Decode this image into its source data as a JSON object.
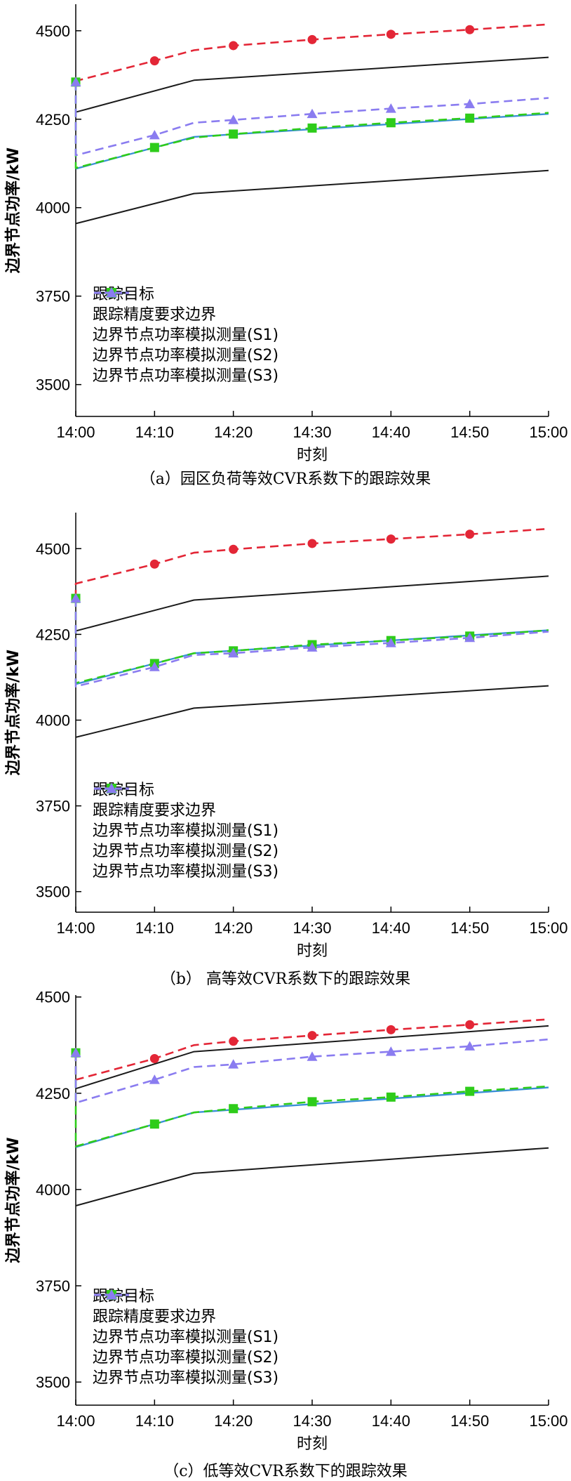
{
  "legend": {
    "target": "跟踪目标",
    "boundary": "跟踪精度要求边界",
    "s1": "边界节点功率模拟测量(S1)",
    "s2": "边界节点功率模拟测量(S2)",
    "s3": "边界节点功率模拟测量(S3)"
  },
  "colors": {
    "target": "#3a8fd6",
    "boundary": "#1a1a1a",
    "s1": "#e32636",
    "s2": "#2ecc1a",
    "s3": "#8a7cf0"
  },
  "chart_data": [
    {
      "type": "line",
      "caption": "（a）园区负荷等效CVR系数下的跟踪效果",
      "xlabel": "时刻",
      "ylabel": "边界节点功率/kW",
      "x_ticks": [
        "14:00",
        "14:10",
        "14:20",
        "14:30",
        "14:40",
        "14:50",
        "15:00"
      ],
      "xlim": [
        0,
        60
      ],
      "y_ticks": [
        3500,
        3750,
        4000,
        4250,
        4500
      ],
      "ylim": [
        3410,
        4575
      ],
      "series": [
        {
          "name": "跟踪目标",
          "key": "target",
          "x": [
            0,
            15,
            60
          ],
          "y": [
            4110,
            4200,
            4265
          ]
        },
        {
          "name": "跟踪精度要求边界",
          "key": "boundary",
          "x": [
            0,
            15,
            60
          ],
          "y": [
            4270,
            4360,
            4425
          ]
        },
        {
          "name": "跟踪精度要求边界",
          "key": "boundary",
          "x": [
            0,
            15,
            60
          ],
          "y": [
            3955,
            4040,
            4105
          ]
        },
        {
          "name": "边界节点功率模拟测量(S1)",
          "key": "s1",
          "x": [
            0,
            0,
            10,
            15,
            20,
            30,
            40,
            50,
            60
          ],
          "y": [
            4355,
            4358,
            4415,
            4445,
            4458,
            4475,
            4490,
            4503,
            4518
          ]
        },
        {
          "name": "边界节点功率模拟测量(S2)",
          "key": "s2",
          "x": [
            0,
            0,
            10,
            15,
            20,
            30,
            40,
            50,
            60
          ],
          "y": [
            4355,
            4112,
            4170,
            4198,
            4208,
            4225,
            4240,
            4253,
            4268
          ]
        },
        {
          "name": "边界节点功率模拟测量(S3)",
          "key": "s3",
          "x": [
            0,
            0,
            10,
            15,
            20,
            30,
            40,
            50,
            60
          ],
          "y": [
            4355,
            4148,
            4205,
            4240,
            4248,
            4265,
            4280,
            4293,
            4310
          ]
        }
      ]
    },
    {
      "type": "line",
      "caption": "（b） 高等效CVR系数下的跟踪效果",
      "xlabel": "时刻",
      "ylabel": "边界节点功率/kW",
      "x_ticks": [
        "14:00",
        "14:10",
        "14:20",
        "14:30",
        "14:40",
        "14:50",
        "15:00"
      ],
      "xlim": [
        0,
        60
      ],
      "y_ticks": [
        3500,
        3750,
        4000,
        4250,
        4500
      ],
      "ylim": [
        3440,
        4605
      ],
      "series": [
        {
          "name": "跟踪目标",
          "key": "target",
          "x": [
            0,
            15,
            60
          ],
          "y": [
            4105,
            4195,
            4262
          ]
        },
        {
          "name": "跟踪精度要求边界",
          "key": "boundary",
          "x": [
            0,
            15,
            60
          ],
          "y": [
            4260,
            4350,
            4420
          ]
        },
        {
          "name": "跟踪精度要求边界",
          "key": "boundary",
          "x": [
            0,
            15,
            60
          ],
          "y": [
            3950,
            4035,
            4100
          ]
        },
        {
          "name": "边界节点功率模拟测量(S1)",
          "key": "s1",
          "x": [
            0,
            0,
            10,
            15,
            20,
            30,
            40,
            50,
            60
          ],
          "y": [
            4355,
            4398,
            4455,
            4488,
            4498,
            4515,
            4528,
            4542,
            4558
          ]
        },
        {
          "name": "边界节点功率模拟测量(S2)",
          "key": "s2",
          "x": [
            0,
            0,
            10,
            15,
            20,
            30,
            40,
            50,
            60
          ],
          "y": [
            4355,
            4108,
            4165,
            4195,
            4202,
            4220,
            4232,
            4245,
            4262
          ]
        },
        {
          "name": "边界节点功率模拟测量(S3)",
          "key": "s3",
          "x": [
            0,
            0,
            10,
            15,
            20,
            30,
            40,
            50,
            60
          ],
          "y": [
            4355,
            4098,
            4155,
            4190,
            4195,
            4212,
            4225,
            4240,
            4258
          ]
        }
      ]
    },
    {
      "type": "line",
      "caption": "（c）低等效CVR系数下的跟踪效果",
      "xlabel": "时刻",
      "ylabel": "边界节点功率/kW",
      "x_ticks": [
        "14:00",
        "14:10",
        "14:20",
        "14:30",
        "14:40",
        "14:50",
        "15:00"
      ],
      "xlim": [
        0,
        60
      ],
      "y_ticks": [
        3500,
        3750,
        4000,
        4250,
        4500
      ],
      "ylim": [
        3440,
        4505
      ],
      "series": [
        {
          "name": "跟踪目标",
          "key": "target",
          "x": [
            0,
            15,
            60
          ],
          "y": [
            4110,
            4200,
            4265
          ]
        },
        {
          "name": "跟踪精度要求边界",
          "key": "boundary",
          "x": [
            0,
            15,
            60
          ],
          "y": [
            4262,
            4358,
            4425
          ]
        },
        {
          "name": "跟踪精度要求边界",
          "key": "boundary",
          "x": [
            0,
            15,
            60
          ],
          "y": [
            3958,
            4042,
            4108
          ]
        },
        {
          "name": "边界节点功率模拟测量(S1)",
          "key": "s1",
          "x": [
            0,
            0,
            10,
            15,
            20,
            30,
            40,
            50,
            60
          ],
          "y": [
            4355,
            4285,
            4340,
            4375,
            4385,
            4400,
            4415,
            4428,
            4442
          ]
        },
        {
          "name": "边界节点功率模拟测量(S2)",
          "key": "s2",
          "x": [
            0,
            0,
            10,
            15,
            20,
            30,
            40,
            50,
            60
          ],
          "y": [
            4355,
            4112,
            4170,
            4200,
            4210,
            4228,
            4240,
            4255,
            4268
          ]
        },
        {
          "name": "边界节点功率模拟测量(S3)",
          "key": "s3",
          "x": [
            0,
            0,
            10,
            15,
            20,
            30,
            40,
            50,
            60
          ],
          "y": [
            4355,
            4225,
            4285,
            4318,
            4325,
            4345,
            4358,
            4372,
            4390
          ]
        }
      ]
    }
  ]
}
